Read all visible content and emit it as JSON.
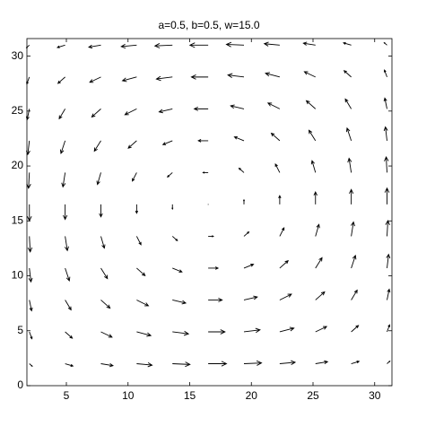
{
  "chart_data": {
    "type": "quiver",
    "title": "a=0.5, b=0.5, w=15.0",
    "color": "#000000",
    "xlim": [
      1.8,
      31.4
    ],
    "ylim": [
      0,
      31.6
    ],
    "xticks": [
      5,
      10,
      15,
      20,
      25,
      30
    ],
    "yticks": [
      0,
      5,
      10,
      15,
      20,
      25,
      30
    ],
    "x": [
      2,
      4.9,
      7.8,
      10.7,
      13.6,
      16.5,
      19.4,
      22.3,
      25.2,
      28.1,
      31
    ],
    "y": [
      2,
      4.9,
      7.8,
      10.7,
      13.6,
      16.5,
      19.4,
      22.3,
      25.2,
      28.1,
      31
    ],
    "u": [
      [
        0.23,
        0.63,
        0.98,
        1.25,
        1.42,
        1.48,
        1.42,
        1.25,
        0.98,
        0.63,
        0.23
      ],
      [
        0.21,
        0.58,
        0.9,
        1.15,
        1.3,
        1.36,
        1.3,
        1.15,
        0.9,
        0.58,
        0.21
      ],
      [
        0.18,
        0.48,
        0.74,
        0.95,
        1.08,
        1.13,
        1.08,
        0.95,
        0.74,
        0.48,
        0.18
      ],
      [
        0.13,
        0.34,
        0.53,
        0.68,
        0.77,
        0.8,
        0.77,
        0.68,
        0.53,
        0.34,
        0.13
      ],
      [
        0.07,
        0.18,
        0.28,
        0.35,
        0.4,
        0.42,
        0.4,
        0.35,
        0.28,
        0.18,
        0.07
      ],
      [
        0,
        0,
        0,
        0,
        0,
        0,
        0,
        0,
        0,
        0,
        0
      ],
      [
        -0.07,
        -0.18,
        -0.28,
        -0.35,
        -0.4,
        -0.42,
        -0.4,
        -0.35,
        -0.28,
        -0.18,
        -0.07
      ],
      [
        -0.13,
        -0.34,
        -0.53,
        -0.68,
        -0.77,
        -0.8,
        -0.77,
        -0.68,
        -0.53,
        -0.34,
        -0.13
      ],
      [
        -0.18,
        -0.48,
        -0.74,
        -0.95,
        -1.08,
        -1.13,
        -1.08,
        -0.95,
        -0.74,
        -0.48,
        -0.18
      ],
      [
        -0.21,
        -0.58,
        -0.9,
        -1.15,
        -1.3,
        -1.36,
        -1.3,
        -1.15,
        -0.9,
        -0.58,
        -0.21
      ],
      [
        -0.23,
        -0.63,
        -0.98,
        -1.25,
        -1.42,
        -1.48,
        -1.42,
        -1.25,
        -0.98,
        -0.63,
        -0.23
      ]
    ],
    "v": [
      [
        -0.23,
        -0.21,
        -0.18,
        -0.13,
        -0.07,
        0,
        0.07,
        0.13,
        0.18,
        0.21,
        0.23
      ],
      [
        -0.63,
        -0.58,
        -0.48,
        -0.34,
        -0.18,
        0,
        0.18,
        0.34,
        0.48,
        0.58,
        0.63
      ],
      [
        -0.98,
        -0.9,
        -0.74,
        -0.53,
        -0.28,
        0,
        0.28,
        0.53,
        0.74,
        0.9,
        0.98
      ],
      [
        -1.25,
        -1.15,
        -0.95,
        -0.68,
        -0.35,
        0,
        0.35,
        0.68,
        0.95,
        1.15,
        1.25
      ],
      [
        -1.42,
        -1.3,
        -1.08,
        -0.77,
        -0.4,
        0,
        0.4,
        0.77,
        1.08,
        1.3,
        1.42
      ],
      [
        -1.48,
        -1.36,
        -1.13,
        -0.8,
        -0.42,
        0,
        0.42,
        0.8,
        1.13,
        1.36,
        1.48
      ],
      [
        -1.42,
        -1.3,
        -1.08,
        -0.77,
        -0.4,
        0,
        0.4,
        0.77,
        1.08,
        1.3,
        1.42
      ],
      [
        -1.25,
        -1.15,
        -0.95,
        -0.68,
        -0.35,
        0,
        0.35,
        0.68,
        0.95,
        1.15,
        1.25
      ],
      [
        -0.98,
        -0.9,
        -0.74,
        -0.53,
        -0.28,
        0,
        0.28,
        0.53,
        0.74,
        0.9,
        0.98
      ],
      [
        -0.63,
        -0.58,
        -0.48,
        -0.34,
        -0.18,
        0,
        0.18,
        0.34,
        0.48,
        0.58,
        0.63
      ],
      [
        -0.23,
        -0.21,
        -0.18,
        -0.13,
        -0.07,
        0,
        0.07,
        0.13,
        0.18,
        0.21,
        0.23
      ]
    ]
  }
}
